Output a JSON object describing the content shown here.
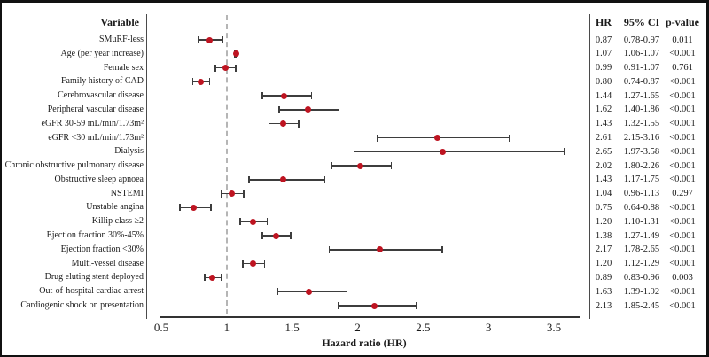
{
  "figure": {
    "colors": {
      "marker": "#be1421",
      "error_bar": "#3d3d3d",
      "reference_line": "#b5b5b5",
      "axis": "#333333",
      "text": "#1a1a1a",
      "border": "#111111"
    }
  },
  "chart_data": {
    "type": "scatter",
    "variant": "forest-plot",
    "title": "",
    "xlabel": "Hazard ratio (HR)",
    "xlim": [
      0.5,
      3.5
    ],
    "x_ticks": [
      0.5,
      1,
      1.5,
      2,
      2.5,
      3,
      3.5
    ],
    "x_tick_labels": [
      "0.5",
      "1",
      "1.5",
      "2",
      "2.5",
      "3",
      "3.5"
    ],
    "reference_line_x": 1,
    "grid": false,
    "columns": [
      "Variable",
      "HR",
      "95% CI",
      "p-value"
    ],
    "rows": [
      {
        "label": "SMuRF-less",
        "hr": "0.87",
        "hr_value": 0.87,
        "ci_low": 0.78,
        "ci_high": 0.97,
        "ci": "0.78-0.97",
        "p": "0.011"
      },
      {
        "label": "Age (per year increase)",
        "hr": "1.07",
        "hr_value": 1.07,
        "ci_low": 1.06,
        "ci_high": 1.07,
        "ci": "1.06-1.07",
        "p": "<0.001"
      },
      {
        "label": "Female sex",
        "hr": "0.99",
        "hr_value": 0.99,
        "ci_low": 0.91,
        "ci_high": 1.07,
        "ci": "0.91-1.07",
        "p": "0.761"
      },
      {
        "label": "Family history of CAD",
        "hr": "0.80",
        "hr_value": 0.8,
        "ci_low": 0.74,
        "ci_high": 0.87,
        "ci": "0.74-0.87",
        "p": "<0.001"
      },
      {
        "label": "Cerebrovascular disease",
        "hr": "1.44",
        "hr_value": 1.44,
        "ci_low": 1.27,
        "ci_high": 1.65,
        "ci": "1.27-1.65",
        "p": "<0.001"
      },
      {
        "label": "Peripheral vascular disease",
        "hr": "1.62",
        "hr_value": 1.62,
        "ci_low": 1.4,
        "ci_high": 1.86,
        "ci": "1.40-1.86",
        "p": "<0.001"
      },
      {
        "label": "eGFR 30-59 mL/min/1.73m²",
        "hr": "1.43",
        "hr_value": 1.43,
        "ci_low": 1.32,
        "ci_high": 1.55,
        "ci": "1.32-1.55",
        "p": "<0.001"
      },
      {
        "label": "eGFR <30 mL/min/1.73m²",
        "hr": "2.61",
        "hr_value": 2.61,
        "ci_low": 2.15,
        "ci_high": 3.16,
        "ci": "2.15-3.16",
        "p": "<0.001"
      },
      {
        "label": "Dialysis",
        "hr": "2.65",
        "hr_value": 2.65,
        "ci_low": 1.97,
        "ci_high": 3.58,
        "ci": "1.97-3.58",
        "p": "<0.001"
      },
      {
        "label": "Chronic obstructive pulmonary disease",
        "hr": "2.02",
        "hr_value": 2.02,
        "ci_low": 1.8,
        "ci_high": 2.26,
        "ci": "1.80-2.26",
        "p": "<0.001"
      },
      {
        "label": "Obstructive sleep apnoea",
        "hr": "1.43",
        "hr_value": 1.43,
        "ci_low": 1.17,
        "ci_high": 1.75,
        "ci": "1.17-1.75",
        "p": "<0.001"
      },
      {
        "label": "NSTEMI",
        "hr": "1.04",
        "hr_value": 1.04,
        "ci_low": 0.96,
        "ci_high": 1.13,
        "ci": "0.96-1.13",
        "p": "0.297"
      },
      {
        "label": "Unstable angina",
        "hr": "0.75",
        "hr_value": 0.75,
        "ci_low": 0.64,
        "ci_high": 0.88,
        "ci": "0.64-0.88",
        "p": "<0.001"
      },
      {
        "label": "Killip class ≥2",
        "hr": "1.20",
        "hr_value": 1.2,
        "ci_low": 1.1,
        "ci_high": 1.31,
        "ci": "1.10-1.31",
        "p": "<0.001"
      },
      {
        "label": "Ejection fraction 30%-45%",
        "hr": "1.38",
        "hr_value": 1.38,
        "ci_low": 1.27,
        "ci_high": 1.49,
        "ci": "1.27-1.49",
        "p": "<0.001"
      },
      {
        "label": "Ejection fraction <30%",
        "hr": "2.17",
        "hr_value": 2.17,
        "ci_low": 1.78,
        "ci_high": 2.65,
        "ci": "1.78-2.65",
        "p": "<0.001"
      },
      {
        "label": "Multi-vessel disease",
        "hr": "1.20",
        "hr_value": 1.2,
        "ci_low": 1.12,
        "ci_high": 1.29,
        "ci": "1.12-1.29",
        "p": "<0.001"
      },
      {
        "label": "Drug eluting stent deployed",
        "hr": "0.89",
        "hr_value": 0.89,
        "ci_low": 0.83,
        "ci_high": 0.96,
        "ci": "0.83-0.96",
        "p": "0.003"
      },
      {
        "label": "Out-of-hospital cardiac arrest",
        "hr": "1.63",
        "hr_value": 1.63,
        "ci_low": 1.39,
        "ci_high": 1.92,
        "ci": "1.39-1.92",
        "p": "<0.001"
      },
      {
        "label": "Cardiogenic shock on presentation",
        "hr": "2.13",
        "hr_value": 2.13,
        "ci_low": 1.85,
        "ci_high": 2.45,
        "ci": "1.85-2.45",
        "p": "<0.001"
      }
    ]
  }
}
